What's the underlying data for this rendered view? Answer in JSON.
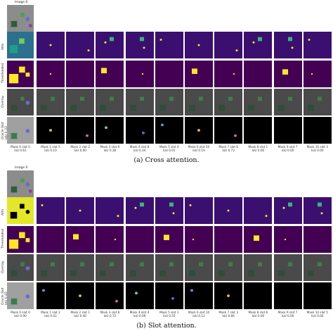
{
  "panels": [
    {
      "image_label": "Image 0",
      "row_labels": [
        "Attn",
        "Thresholded",
        "Overlay",
        "Oracle Slot"
      ],
      "oracle_label_line2": "IoU 0.33",
      "columns": [
        {
          "mask": "Mask 0 slot 0",
          "iou": "IoU 0.61"
        },
        {
          "mask": "Mask 1 slot 5",
          "iou": "IoU 0.10"
        },
        {
          "mask": "Mask 2 slot 2",
          "iou": "IoU 0.00"
        },
        {
          "mask": "Mask 3 slot 9",
          "iou": "IoU 0.38"
        },
        {
          "mask": "Mask 4 slot 8",
          "iou": "IoU 0.34"
        },
        {
          "mask": "Mask 5 slot 4",
          "iou": "IoU 0.01"
        },
        {
          "mask": "Mask 6 slot 10",
          "iou": "IoU 0.19"
        },
        {
          "mask": "Mask 7 slot 6",
          "iou": "IoU 0.73"
        },
        {
          "mask": "Mask 8 slot 1",
          "iou": "IoU 0.00"
        },
        {
          "mask": "Mask 9 slot 7",
          "iou": "IoU 0.00"
        },
        {
          "mask": "Mask 10 slot 3",
          "iou": "IoU 0.00"
        }
      ],
      "caption": "(a) Cross attention."
    },
    {
      "image_label": "Image 0",
      "row_labels": [
        "Attn",
        "Thresholded",
        "Overlay",
        "Oracle Slot"
      ],
      "oracle_label_line2": "IoU 0.45",
      "columns": [
        {
          "mask": "Mask 0 slot 0",
          "iou": "IoU 0.90"
        },
        {
          "mask": "Mask 1 slot 2",
          "iou": "IoU 0.02"
        },
        {
          "mask": "Mask 2 slot 1",
          "iou": "IoU 0.40"
        },
        {
          "mask": "Mask 3 slot 8",
          "iou": "IoU 0.72"
        },
        {
          "mask": "Mask 4 slot 4",
          "iou": "IoU 0.09"
        },
        {
          "mask": "Mask 5 slot 1",
          "iou": "IoU 0.55"
        },
        {
          "mask": "Mask 6 slot 10",
          "iou": "IoU 0.12"
        },
        {
          "mask": "Mask 7 slot 3",
          "iou": "IoU 0.66"
        },
        {
          "mask": "Mask 8 slot 6",
          "iou": "IoU 0.00"
        },
        {
          "mask": "Mask 9 slot 7",
          "iou": "IoU 0.00"
        },
        {
          "mask": "Mask 10 slot 5",
          "iou": "IoU 0.00"
        }
      ],
      "caption": "(b) Slot attention."
    }
  ],
  "colors": {
    "attn_bg": "#3b0f70",
    "attn_bg_bright": "#e4e62a",
    "thresh_bg": "#440154",
    "thresh_fg": "#fde725",
    "overlay_bg": "#4a4a4a",
    "oracle_bg": "#000000",
    "scene_bg": "#8c8c8c"
  }
}
